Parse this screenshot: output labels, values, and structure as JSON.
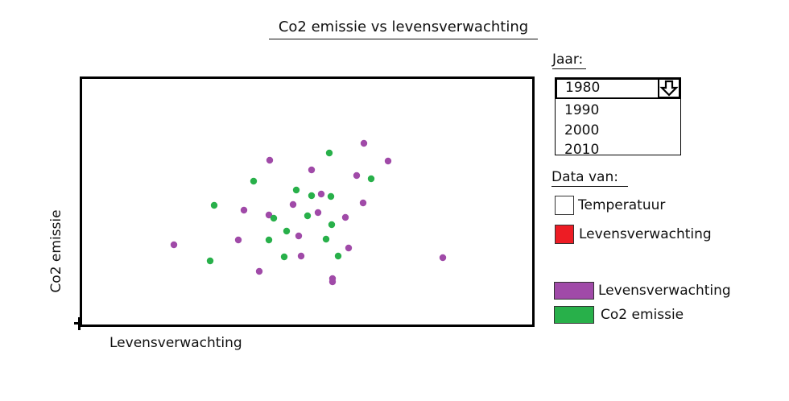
{
  "chart_data": {
    "type": "scatter",
    "title": "Co2 emissie vs levensverwachting",
    "xlabel": "Levensverwachting",
    "ylabel": "Co2 emissie",
    "grid": false,
    "legend_position": "right",
    "series": [
      {
        "name": "Levensverwachting",
        "color": "#a04aa8",
        "points": [
          [
            216,
            304
          ],
          [
            296,
            298
          ],
          [
            303,
            261
          ],
          [
            322,
            337
          ],
          [
            335,
            199
          ],
          [
            334,
            267
          ],
          [
            364,
            254
          ],
          [
            371,
            293
          ],
          [
            374,
            318
          ],
          [
            387,
            211
          ],
          [
            395,
            264
          ],
          [
            399,
            241
          ],
          [
            413,
            346
          ],
          [
            413,
            350
          ],
          [
            429,
            270
          ],
          [
            433,
            308
          ],
          [
            443,
            218
          ],
          [
            451,
            252
          ],
          [
            452,
            178
          ],
          [
            482,
            200
          ],
          [
            550,
            320
          ]
        ]
      },
      {
        "name": "Co2 emissie",
        "color": "#28b04a",
        "points": [
          [
            261,
            324
          ],
          [
            266,
            255
          ],
          [
            315,
            225
          ],
          [
            334,
            298
          ],
          [
            340,
            271
          ],
          [
            353,
            319
          ],
          [
            356,
            287
          ],
          [
            368,
            236
          ],
          [
            382,
            268
          ],
          [
            387,
            243
          ],
          [
            405,
            297
          ],
          [
            409,
            190
          ],
          [
            411,
            244
          ],
          [
            412,
            279
          ],
          [
            420,
            318
          ],
          [
            461,
            222
          ]
        ]
      }
    ]
  },
  "controls": {
    "jaar_label": "Jaar:",
    "year_selected": "1980",
    "year_options": [
      "1990",
      "2000",
      "2010"
    ],
    "data_label": "Data van:",
    "checkbox_temperatuur": "Temperatuur",
    "checkbox_levensverwachting": "Levensverwachting",
    "checkbox_colors": {
      "temperatuur": "#ffffff",
      "levensverwachting": "#ed1c24"
    }
  },
  "legend": {
    "items": [
      {
        "label": "Levensverwachting",
        "color": "#a04aa8"
      },
      {
        "label": "Co2 emissie",
        "color": "#28b04a"
      }
    ]
  },
  "icons": {
    "dropdown": "arrow-down-icon"
  }
}
